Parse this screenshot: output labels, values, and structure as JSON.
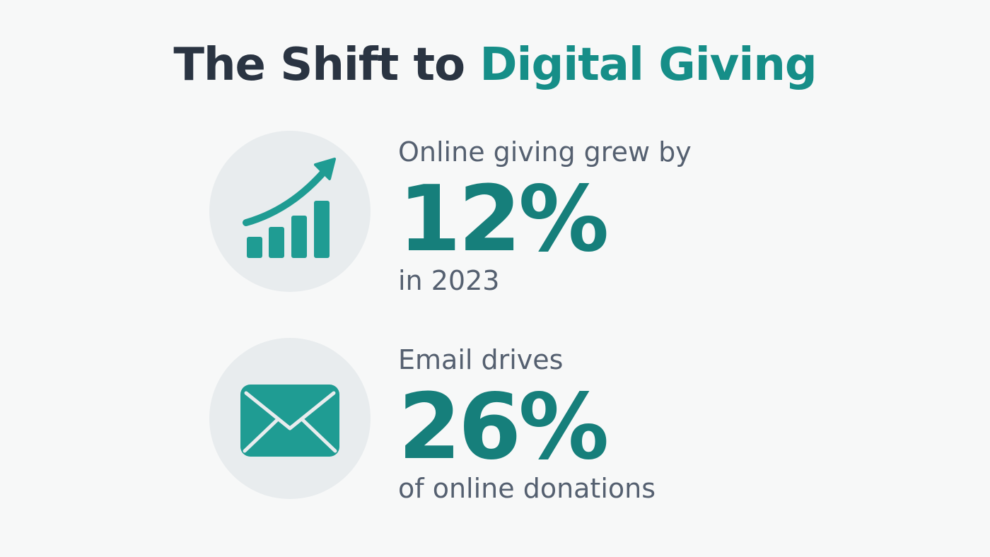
{
  "title": {
    "part1": "The Shift to ",
    "part2": "Digital Giving"
  },
  "stats": [
    {
      "icon": "growth-chart-icon",
      "lead": "Online giving grew by",
      "value": "12%",
      "tail": "in 2023"
    },
    {
      "icon": "envelope-icon",
      "lead": "Email drives",
      "value": "26%",
      "tail": "of online donations"
    }
  ],
  "colors": {
    "background": "#f7f8f8",
    "title_dark": "#2a3442",
    "accent": "#168e88",
    "stat_value": "#167f7b",
    "body_text": "#556070",
    "icon_fill": "#1f9c93",
    "circle_bg": "#e8ecee"
  }
}
